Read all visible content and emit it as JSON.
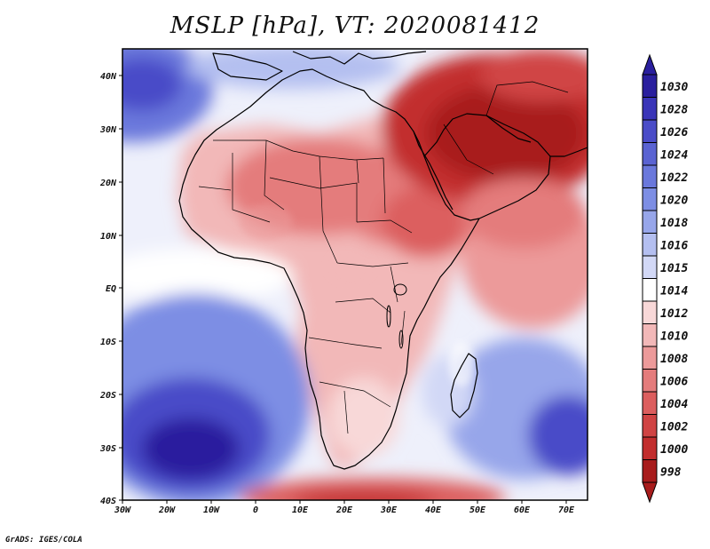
{
  "title": "MSLP [hPa], VT: 2020081412",
  "credit": "GrADS: IGES/COLA",
  "map": {
    "lon_range": [
      -30,
      75
    ],
    "lat_range": [
      -40,
      45
    ],
    "lon_ticks": [
      "30W",
      "20W",
      "10W",
      "0",
      "10E",
      "20E",
      "30E",
      "40E",
      "50E",
      "60E",
      "70E"
    ],
    "lat_ticks": [
      "40N",
      "30N",
      "20N",
      "10N",
      "EQ",
      "10S",
      "20S",
      "30S",
      "40S"
    ]
  },
  "colorbar": {
    "levels": [
      "1030",
      "1028",
      "1026",
      "1024",
      "1022",
      "1020",
      "1018",
      "1016",
      "1015",
      "1014",
      "1012",
      "1010",
      "1008",
      "1006",
      "1004",
      "1002",
      "1000",
      "998"
    ],
    "colors": [
      "#2a1f9e",
      "#3a35b8",
      "#4a4cc8",
      "#5a63d2",
      "#6a78dc",
      "#7d8ee4",
      "#97a6ea",
      "#b4bff0",
      "#d2d8f6",
      "#ffffff",
      "#f8d8d8",
      "#f2b8b8",
      "#ec9a9a",
      "#e47c7c",
      "#dc5e5e",
      "#d04444",
      "#c22e2e",
      "#a81c1c"
    ]
  },
  "pressure_regions": [
    {
      "name": "saharan-heat-low",
      "value": 1008,
      "label": ""
    },
    {
      "name": "arabian-low",
      "value": 1000,
      "label": ""
    },
    {
      "name": "st-helena-high",
      "value": 1026,
      "label": ""
    },
    {
      "name": "mascarene-high",
      "value": 1024,
      "label": ""
    },
    {
      "name": "azores-high",
      "value": 1022,
      "label": ""
    },
    {
      "name": "southern-ocean-low",
      "value": 1004,
      "label": ""
    }
  ]
}
